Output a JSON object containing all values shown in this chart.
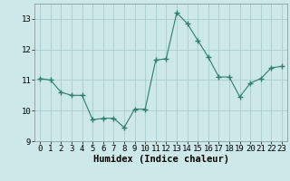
{
  "x": [
    0,
    1,
    2,
    3,
    4,
    5,
    6,
    7,
    8,
    9,
    10,
    11,
    12,
    13,
    14,
    15,
    16,
    17,
    18,
    19,
    20,
    21,
    22,
    23
  ],
  "y": [
    11.05,
    11.0,
    10.6,
    10.5,
    10.5,
    9.7,
    9.75,
    9.75,
    9.45,
    10.05,
    10.05,
    11.65,
    11.7,
    13.2,
    12.85,
    12.3,
    11.75,
    11.1,
    11.1,
    10.45,
    10.9,
    11.05,
    11.4,
    11.45
  ],
  "line_color": "#2e7d6e",
  "marker": "+",
  "marker_size": 4,
  "bg_color": "#cce8e8",
  "grid_color": "#aacccc",
  "xlabel": "Humidex (Indice chaleur)",
  "ylim": [
    9.0,
    13.5
  ],
  "xlim": [
    -0.5,
    23.5
  ],
  "yticks": [
    9,
    10,
    11,
    12,
    13
  ],
  "xticks": [
    0,
    1,
    2,
    3,
    4,
    5,
    6,
    7,
    8,
    9,
    10,
    11,
    12,
    13,
    14,
    15,
    16,
    17,
    18,
    19,
    20,
    21,
    22,
    23
  ],
  "xtick_labels": [
    "0",
    "1",
    "2",
    "3",
    "4",
    "5",
    "6",
    "7",
    "8",
    "9",
    "10",
    "11",
    "12",
    "13",
    "14",
    "15",
    "16",
    "17",
    "18",
    "19",
    "20",
    "21",
    "22",
    "23"
  ],
  "tick_fontsize": 6.5,
  "label_fontsize": 7.5
}
